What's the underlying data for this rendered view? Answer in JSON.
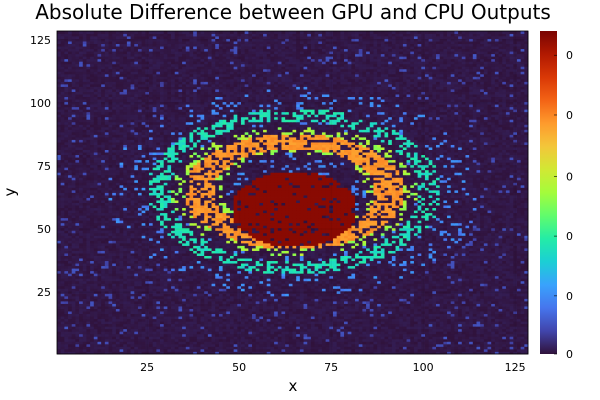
{
  "chart_data": {
    "type": "heatmap",
    "title": "Absolute Difference between GPU and CPU Outputs",
    "xlabel": "x",
    "ylabel": "y",
    "xlim": [
      0.5,
      128.5
    ],
    "ylim": [
      0.5,
      128.5
    ],
    "x_ticks": [
      25,
      50,
      75,
      100,
      125
    ],
    "y_ticks": [
      25,
      50,
      75,
      100,
      125
    ],
    "colorbar_ticks": [
      "0",
      "0",
      "0",
      "0",
      "0",
      "0"
    ],
    "colormap": "turbo",
    "colormap_stops": [
      "#30123b",
      "#4145ab",
      "#4675ed",
      "#39a2fc",
      "#1bcfd4",
      "#24eca6",
      "#61fc6c",
      "#a4fc3b",
      "#d1e834",
      "#f3c63a",
      "#fe9b2d",
      "#f36315",
      "#d93806",
      "#b11901",
      "#7a0402"
    ],
    "grid": true,
    "grid_size": [
      128,
      128
    ],
    "structure": [
      {
        "name": "center blob",
        "cx": 65,
        "cy": 58,
        "rx": 17,
        "ry": 15,
        "value": 0.98
      },
      {
        "name": "ring",
        "cx": 65,
        "cy": 65,
        "rx_inner": 22,
        "ry_inner": 17,
        "rx_outer": 30,
        "ry_outer": 23,
        "value": 0.72
      },
      {
        "name": "outer ring",
        "cx": 65,
        "cy": 65,
        "rx_inner": 34,
        "ry_inner": 28,
        "rx_outer": 40,
        "ry_outer": 33,
        "value": 0.33
      },
      {
        "name": "background",
        "value": 0.0
      }
    ]
  }
}
